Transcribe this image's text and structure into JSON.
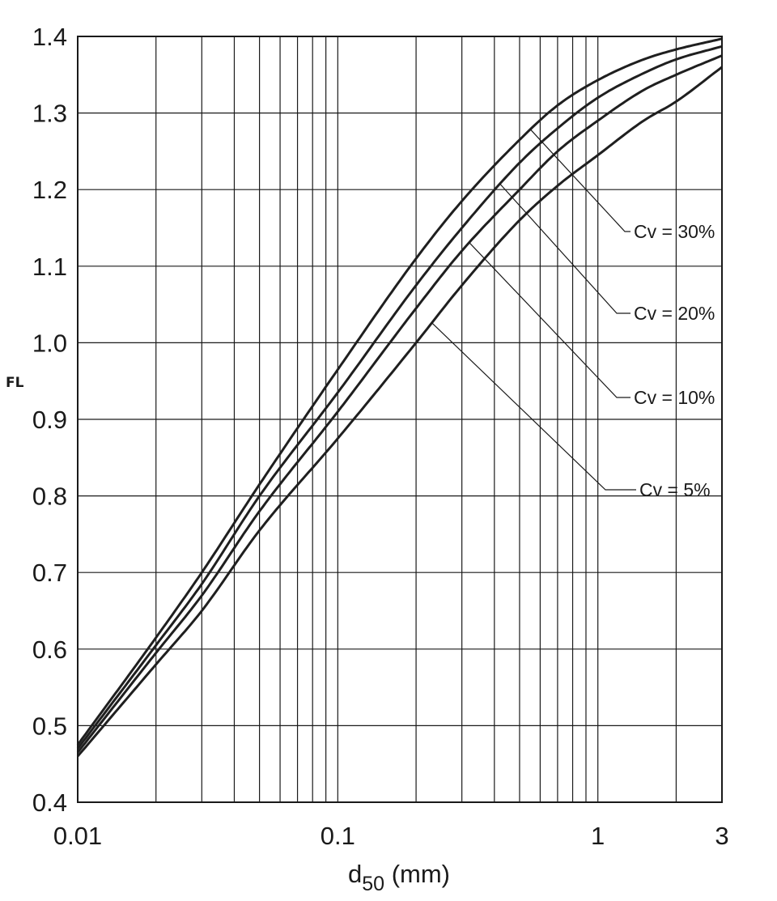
{
  "chart_data": {
    "type": "line",
    "xlabel_main": "d",
    "xlabel_sub": "50",
    "xlabel_unit": " (mm)",
    "ylabel": "FL",
    "xscale": "log",
    "xlim": [
      0.01,
      3
    ],
    "ylim": [
      0.4,
      1.4
    ],
    "grid": true,
    "x_tick_labels": [
      {
        "value": 0.01,
        "label": "0.01"
      },
      {
        "value": 0.1,
        "label": "0.1"
      },
      {
        "value": 1,
        "label": "1"
      },
      {
        "value": 3,
        "label": "3"
      }
    ],
    "x_gridlines": [
      0.02,
      0.03,
      0.04,
      0.05,
      0.06,
      0.07,
      0.08,
      0.09,
      0.1,
      0.2,
      0.3,
      0.4,
      0.5,
      0.6,
      0.7,
      0.8,
      0.9,
      1,
      2
    ],
    "y_ticks": [
      {
        "value": 0.4,
        "label": "0.4"
      },
      {
        "value": 0.5,
        "label": "0.5"
      },
      {
        "value": 0.6,
        "label": "0.6"
      },
      {
        "value": 0.7,
        "label": "0.7"
      },
      {
        "value": 0.8,
        "label": "0.8"
      },
      {
        "value": 0.9,
        "label": "0.9"
      },
      {
        "value": 1.0,
        "label": "1.0"
      },
      {
        "value": 1.1,
        "label": "1.1"
      },
      {
        "value": 1.2,
        "label": "1.2"
      },
      {
        "value": 1.3,
        "label": "1.3"
      },
      {
        "value": 1.4,
        "label": "1.4"
      }
    ],
    "series": [
      {
        "name": "Cv = 30%",
        "x": [
          0.01,
          0.02,
          0.03,
          0.05,
          0.1,
          0.2,
          0.3,
          0.5,
          0.7,
          1,
          1.5,
          2,
          3
        ],
        "y": [
          0.475,
          0.615,
          0.7,
          0.815,
          0.965,
          1.11,
          1.185,
          1.265,
          1.31,
          1.343,
          1.37,
          1.383,
          1.397
        ],
        "label_anchor_x": 0.55
      },
      {
        "name": "Cv = 20%",
        "x": [
          0.01,
          0.02,
          0.03,
          0.05,
          0.1,
          0.2,
          0.3,
          0.5,
          0.7,
          1,
          1.5,
          2,
          3
        ],
        "y": [
          0.47,
          0.605,
          0.685,
          0.8,
          0.935,
          1.075,
          1.15,
          1.235,
          1.28,
          1.32,
          1.352,
          1.37,
          1.387
        ],
        "label_anchor_x": 0.42
      },
      {
        "name": "Cv = 10%",
        "x": [
          0.01,
          0.02,
          0.03,
          0.05,
          0.1,
          0.2,
          0.3,
          0.5,
          0.7,
          1,
          1.5,
          2,
          3
        ],
        "y": [
          0.465,
          0.595,
          0.67,
          0.78,
          0.91,
          1.045,
          1.12,
          1.2,
          1.25,
          1.29,
          1.33,
          1.35,
          1.375
        ],
        "label_anchor_x": 0.32
      },
      {
        "name": "Cv = 5%",
        "x": [
          0.01,
          0.02,
          0.03,
          0.05,
          0.1,
          0.2,
          0.3,
          0.5,
          0.7,
          1,
          1.5,
          2,
          3
        ],
        "y": [
          0.46,
          0.58,
          0.65,
          0.755,
          0.875,
          1.0,
          1.075,
          1.16,
          1.205,
          1.245,
          1.29,
          1.315,
          1.36
        ],
        "label_anchor_x": 0.23
      }
    ]
  }
}
